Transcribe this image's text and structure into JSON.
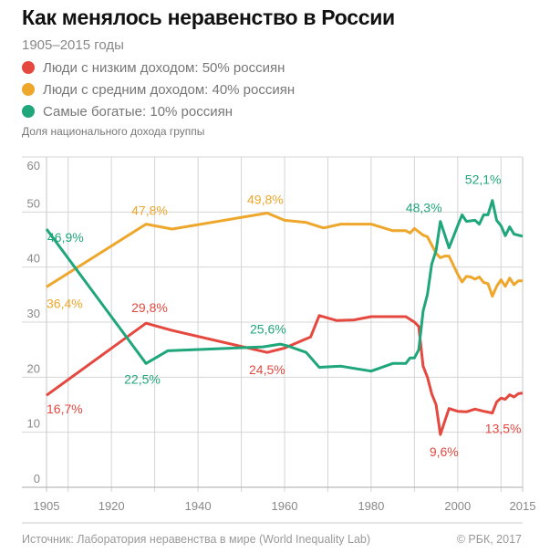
{
  "chart_data": {
    "type": "line",
    "title": "Как менялось неравенство в России",
    "subtitle": "1905–2015 годы",
    "ylabel": "Доля национального дохода группы",
    "xlabel": "",
    "xlim": [
      1905,
      2015
    ],
    "ylim": [
      0,
      60
    ],
    "x_ticks": [
      "1905",
      "1920",
      "1940",
      "1960",
      "1980",
      "2000",
      "2015"
    ],
    "y_ticks": [
      "0",
      "10",
      "20",
      "30",
      "40",
      "50",
      "60"
    ],
    "grid": true,
    "legend_position": "top-left",
    "series": [
      {
        "name": "Люди с низким доходом: 50% россиян",
        "color": "#e5483f",
        "points": [
          [
            1905,
            16.7
          ],
          [
            1928,
            29.8
          ],
          [
            1934,
            28.5
          ],
          [
            1956,
            24.5
          ],
          [
            1960,
            25.3
          ],
          [
            1966,
            27.3
          ],
          [
            1968,
            31.2
          ],
          [
            1972,
            30.3
          ],
          [
            1976,
            30.4
          ],
          [
            1980,
            31.0
          ],
          [
            1988,
            31.0
          ],
          [
            1990,
            30.0
          ],
          [
            1991,
            29.2
          ],
          [
            1992,
            22
          ],
          [
            1993,
            20
          ],
          [
            1994,
            17
          ],
          [
            1995,
            15
          ],
          [
            1996,
            9.6
          ],
          [
            1997,
            12
          ],
          [
            1998,
            14.3
          ],
          [
            2000,
            13.8
          ],
          [
            2002,
            13.7
          ],
          [
            2004,
            14.2
          ],
          [
            2006,
            13.8
          ],
          [
            2008,
            13.5
          ],
          [
            2009,
            15.5
          ],
          [
            2010,
            16.2
          ],
          [
            2011,
            16
          ],
          [
            2012,
            16.8
          ],
          [
            2013,
            16.4
          ],
          [
            2014,
            17
          ],
          [
            2015,
            17.1
          ]
        ],
        "labels": [
          {
            "x": 1905,
            "y": 16.7,
            "text": "16,7%"
          },
          {
            "x": 1928,
            "y": 29.8,
            "text": "29,8%"
          },
          {
            "x": 1956,
            "y": 24.5,
            "text": "24,5%"
          },
          {
            "x": 1996,
            "y": 9.6,
            "text": "9,6%"
          },
          {
            "x": 2008,
            "y": 13.5,
            "text": "13,5%"
          }
        ]
      },
      {
        "name": "Люди с средним доходом: 40% россиян",
        "color": "#eea62b",
        "points": [
          [
            1905,
            36.4
          ],
          [
            1928,
            47.8
          ],
          [
            1934,
            46.9
          ],
          [
            1956,
            49.8
          ],
          [
            1960,
            48.5
          ],
          [
            1965,
            48.1
          ],
          [
            1969,
            47.1
          ],
          [
            1973,
            47.8
          ],
          [
            1980,
            47.8
          ],
          [
            1985,
            46.6
          ],
          [
            1988,
            46.6
          ],
          [
            1989,
            46.2
          ],
          [
            1990,
            47.0
          ],
          [
            1992,
            45.8
          ],
          [
            1993,
            45.5
          ],
          [
            1995,
            42.5
          ],
          [
            1996,
            41.7
          ],
          [
            1997,
            42
          ],
          [
            1998,
            42
          ],
          [
            2000,
            38.7
          ],
          [
            2001,
            37.3
          ],
          [
            2002,
            38.3
          ],
          [
            2003,
            38.2
          ],
          [
            2004,
            37.8
          ],
          [
            2005,
            38.2
          ],
          [
            2006,
            37.2
          ],
          [
            2007,
            37
          ],
          [
            2008,
            34.7
          ],
          [
            2009,
            36.5
          ],
          [
            2010,
            37.7
          ],
          [
            2011,
            36.5
          ],
          [
            2012,
            38
          ],
          [
            2013,
            36.8
          ],
          [
            2014,
            37.5
          ],
          [
            2015,
            37.5
          ]
        ],
        "labels": [
          {
            "x": 1905,
            "y": 36.4,
            "text": "36,4%"
          },
          {
            "x": 1928,
            "y": 47.8,
            "text": "47,8%"
          },
          {
            "x": 1956,
            "y": 49.8,
            "text": "49,8%"
          }
        ]
      },
      {
        "name": "Самые богатые: 10% россиян",
        "color": "#1fa67a",
        "points": [
          [
            1905,
            46.9
          ],
          [
            1928,
            22.5
          ],
          [
            1933,
            24.8
          ],
          [
            1955,
            25.5
          ],
          [
            1959,
            26
          ],
          [
            1961,
            25.6
          ],
          [
            1965,
            24.5
          ],
          [
            1968,
            21.8
          ],
          [
            1973,
            22
          ],
          [
            1980,
            21.1
          ],
          [
            1985,
            22.5
          ],
          [
            1988,
            22.5
          ],
          [
            1989,
            23.5
          ],
          [
            1990,
            23.5
          ],
          [
            1991,
            25
          ],
          [
            1992,
            32
          ],
          [
            1993,
            35
          ],
          [
            1994,
            40.5
          ],
          [
            1995,
            43
          ],
          [
            1996,
            48.3
          ],
          [
            1998,
            43.5
          ],
          [
            2000,
            47.5
          ],
          [
            2001,
            49.5
          ],
          [
            2002,
            48.3
          ],
          [
            2004,
            48.5
          ],
          [
            2005,
            47.8
          ],
          [
            2006,
            49.5
          ],
          [
            2007,
            49.5
          ],
          [
            2008,
            52.1
          ],
          [
            2009,
            48.5
          ],
          [
            2010,
            47.5
          ],
          [
            2011,
            45.7
          ],
          [
            2012,
            47.3
          ],
          [
            2013,
            46
          ],
          [
            2015,
            45.6
          ]
        ],
        "labels": [
          {
            "x": 1905,
            "y": 46.9,
            "text": "46,9%"
          },
          {
            "x": 1928,
            "y": 22.5,
            "text": "22,5%"
          },
          {
            "x": 1960,
            "y": 25.6,
            "text": "25,6%"
          },
          {
            "x": 1996,
            "y": 48.3,
            "text": "48,3%"
          },
          {
            "x": 2008,
            "y": 52.1,
            "text": "52,1%"
          }
        ]
      }
    ]
  },
  "footer": {
    "source": "Источник: Лаборатория неравенства в мире (World Inequality Lab)",
    "copyright": "© РБК, 2017"
  }
}
